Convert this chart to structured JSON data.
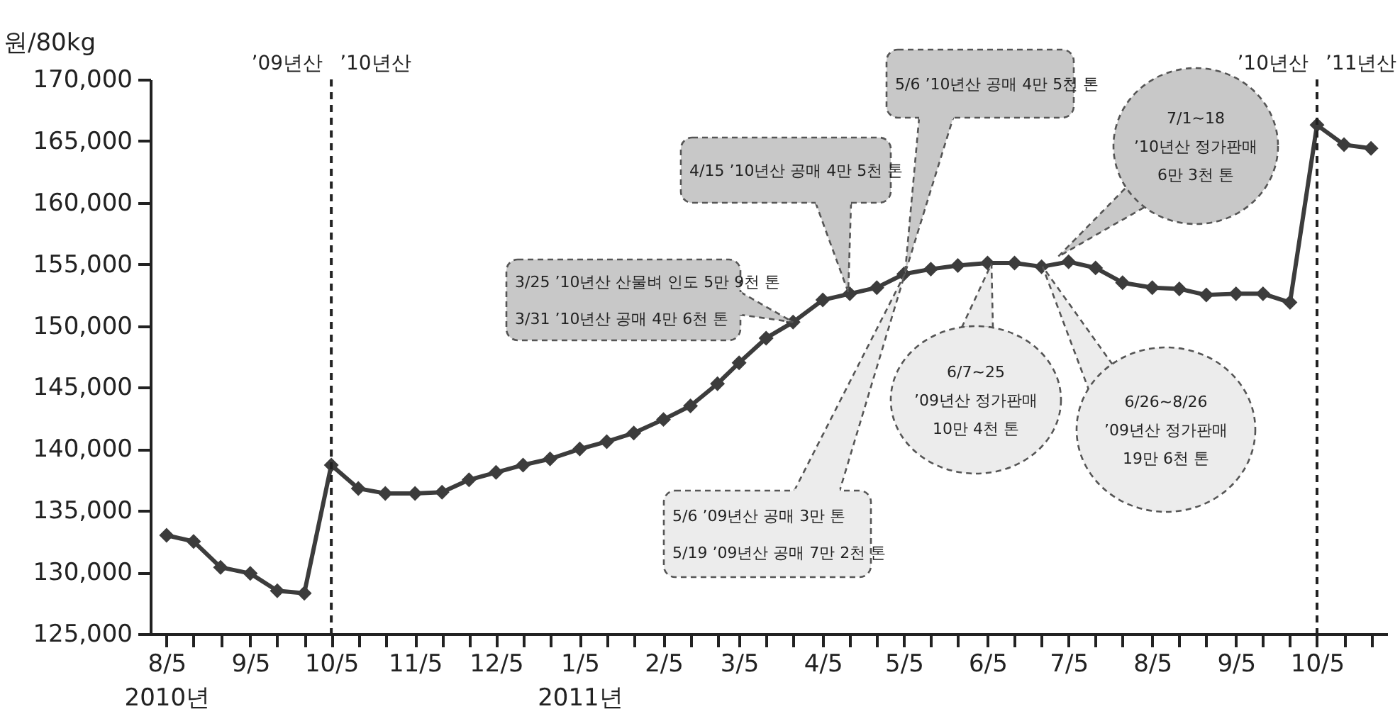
{
  "chart_data": {
    "type": "line",
    "ylabel": "원/80kg",
    "marker": "diamond",
    "line_style": "solid",
    "x": [
      "2010-08-05",
      "2010-08-15",
      "2010-08-25",
      "2010-09-05",
      "2010-09-15",
      "2010-09-25",
      "2010-10-05",
      "2010-10-15",
      "2010-10-25",
      "2010-11-05",
      "2010-11-15",
      "2010-11-25",
      "2010-12-05",
      "2010-12-15",
      "2010-12-25",
      "2011-01-05",
      "2011-01-15",
      "2011-01-25",
      "2011-02-05",
      "2011-02-15",
      "2011-02-25",
      "2011-03-05",
      "2011-03-15",
      "2011-03-25",
      "2011-04-05",
      "2011-04-15",
      "2011-04-25",
      "2011-05-05",
      "2011-05-15",
      "2011-05-25",
      "2011-06-05",
      "2011-06-15",
      "2011-06-25",
      "2011-07-05",
      "2011-07-15",
      "2011-07-25",
      "2011-08-05",
      "2011-08-15",
      "2011-08-25",
      "2011-09-05",
      "2011-09-15",
      "2011-09-25",
      "2011-10-05",
      "2011-10-15",
      "2011-10-25"
    ],
    "series": [
      {
        "color": "#3c3c3c",
        "values": [
          133000,
          132500,
          130400,
          129900,
          128500,
          128300,
          138700,
          136800,
          136400,
          136400,
          136500,
          137500,
          138100,
          138700,
          139200,
          140000,
          140600,
          141300,
          142400,
          143500,
          145300,
          147000,
          149000,
          150300,
          152100,
          152600,
          153100,
          154200,
          154600,
          154900,
          155100,
          155100,
          154800,
          155200,
          154700,
          153500,
          153100,
          153000,
          152500,
          152600,
          152600,
          151900,
          166300,
          164700,
          164400
        ]
      }
    ],
    "xlim": [
      "2010-07-30",
      "2011-10-31"
    ],
    "xticks": [
      {
        "value": "2010-08-05",
        "label": "8/5\n2010년"
      },
      {
        "value": "2010-08-15",
        "label": null
      },
      {
        "value": "2010-08-25",
        "label": null
      },
      {
        "value": "2010-09-05",
        "label": "9/5"
      },
      {
        "value": "2010-09-15",
        "label": null
      },
      {
        "value": "2010-09-25",
        "label": null
      },
      {
        "value": "2010-10-05",
        "label": "10/5"
      },
      {
        "value": "2010-10-15",
        "label": null
      },
      {
        "value": "2010-10-25",
        "label": null
      },
      {
        "value": "2010-11-05",
        "label": "11/5"
      },
      {
        "value": "2010-11-15",
        "label": null
      },
      {
        "value": "2010-11-25",
        "label": null
      },
      {
        "value": "2010-12-05",
        "label": "12/5"
      },
      {
        "value": "2010-12-15",
        "label": null
      },
      {
        "value": "2010-12-25",
        "label": null
      },
      {
        "value": "2011-01-05",
        "label": "1/5\n2011년"
      },
      {
        "value": "2011-01-15",
        "label": null
      },
      {
        "value": "2011-01-25",
        "label": null
      },
      {
        "value": "2011-02-05",
        "label": "2/5"
      },
      {
        "value": "2011-02-15",
        "label": null
      },
      {
        "value": "2011-02-25",
        "label": null
      },
      {
        "value": "2011-03-05",
        "label": "3/5"
      },
      {
        "value": "2011-03-15",
        "label": null
      },
      {
        "value": "2011-03-25",
        "label": null
      },
      {
        "value": "2011-04-05",
        "label": "4/5"
      },
      {
        "value": "2011-04-15",
        "label": null
      },
      {
        "value": "2011-04-25",
        "label": null
      },
      {
        "value": "2011-05-05",
        "label": "5/5"
      },
      {
        "value": "2011-05-15",
        "label": null
      },
      {
        "value": "2011-05-25",
        "label": null
      },
      {
        "value": "2011-06-05",
        "label": "6/5"
      },
      {
        "value": "2011-06-15",
        "label": null
      },
      {
        "value": "2011-06-25",
        "label": null
      },
      {
        "value": "2011-07-05",
        "label": "7/5"
      },
      {
        "value": "2011-07-15",
        "label": null
      },
      {
        "value": "2011-07-25",
        "label": null
      },
      {
        "value": "2011-08-05",
        "label": "8/5"
      },
      {
        "value": "2011-08-15",
        "label": null
      },
      {
        "value": "2011-08-25",
        "label": null
      },
      {
        "value": "2011-09-05",
        "label": "9/5"
      },
      {
        "value": "2011-09-15",
        "label": null
      },
      {
        "value": "2011-09-25",
        "label": null
      },
      {
        "value": "2011-10-05",
        "label": "10/5"
      },
      {
        "value": "2011-10-15",
        "label": null
      },
      {
        "value": "2011-10-25",
        "label": null
      }
    ],
    "ylim": [
      125000,
      170000
    ],
    "yticks": [
      {
        "value": 125000,
        "label": "125,000"
      },
      {
        "value": 130000,
        "label": "130,000"
      },
      {
        "value": 135000,
        "label": "135,000"
      },
      {
        "value": 140000,
        "label": "140,000"
      },
      {
        "value": 145000,
        "label": "145,000"
      },
      {
        "value": 150000,
        "label": "150,000"
      },
      {
        "value": 155000,
        "label": "155,000"
      },
      {
        "value": 160000,
        "label": "160,000"
      },
      {
        "value": 165000,
        "label": "165,000"
      },
      {
        "value": 170000,
        "label": "170,000"
      }
    ],
    "ref_lines": [
      {
        "axis": "x",
        "value": "2010-10-05",
        "line_style": "dashed"
      },
      {
        "axis": "x",
        "value": "2011-10-05",
        "line_style": "dashed"
      }
    ],
    "annotations": [
      "’09년산",
      "’10년산",
      "’10년산",
      "’11년산",
      {
        "text": "3/25 ’10년산 산물벼 인도 5만 9천 톤\n3/31 ’10년산 공매 4만 6천 톤",
        "x": "2011-03-25",
        "y": 150300
      },
      "4/15 ’10년산 공매 4만 5천 톤",
      "5/6 ’10년산 공매 4만 5천 톤",
      "5/6 ’09년산 공매 3만 톤\n5/19 ’09년산 공매 7만 2천 톤",
      "6/7~25\n’09년산 정가판매\n10만 4천 톤",
      "7/1~18\n’10년산 정가판매\n6만 3천 톤",
      "6/26~8/26\n’09년산 정가판매\n19만 6천 톤"
    ]
  }
}
